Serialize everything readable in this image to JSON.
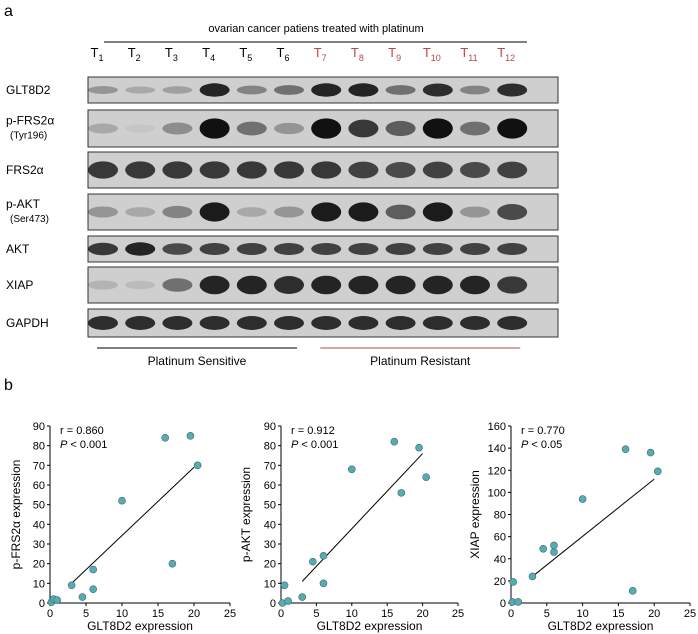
{
  "panel_a": {
    "label": "a",
    "title": "ovarian cancer patiens treated with platinum",
    "groups": [
      {
        "name": "Platinum Sensitive",
        "color": "#000000",
        "lanes": [
          [
            "T",
            "1"
          ],
          [
            "T",
            "2"
          ],
          [
            "T",
            "3"
          ],
          [
            "T",
            "4"
          ],
          [
            "T",
            "5"
          ],
          [
            "T",
            "6"
          ]
        ]
      },
      {
        "name": "Platinum Resistant",
        "color": "#b8474a",
        "lanes": [
          [
            "T",
            "7"
          ],
          [
            "T",
            "8"
          ],
          [
            "T",
            "9"
          ],
          [
            "T",
            "10"
          ],
          [
            "T",
            "11"
          ],
          [
            "T",
            "12"
          ]
        ]
      }
    ],
    "rows": [
      {
        "name": "GLT8D2"
      },
      {
        "name": "p-FRS2α",
        "site": "(Tyr196)"
      },
      {
        "name": "FRS2α"
      },
      {
        "name": "p-AKT",
        "site": "(Ser473)"
      },
      {
        "name": "AKT"
      },
      {
        "name": "XIAP"
      },
      {
        "name": "GAPDH"
      }
    ]
  },
  "panel_b": {
    "label": "b"
  },
  "chart_data": [
    {
      "type": "scatter",
      "x_label": "GLT8D2 expression",
      "y_label": "p-FRS2α expression",
      "r_text": "r = 0.860",
      "p_symbol": "P",
      "p_text": "< 0.001",
      "color": "#5aabb0",
      "x": [
        0.2,
        0.5,
        1,
        3,
        4.5,
        6,
        6,
        10,
        16,
        17,
        19.5,
        20.5
      ],
      "y": [
        0.5,
        2,
        1.5,
        9,
        3,
        7,
        17,
        52,
        84,
        20,
        85,
        70
      ],
      "trend": {
        "x": [
          3,
          20
        ],
        "y": [
          10,
          69
        ]
      },
      "xlim": [
        0,
        25
      ],
      "xticks": [
        0,
        5,
        10,
        15,
        20,
        25
      ],
      "ylim": [
        0,
        90
      ],
      "yticks": [
        0,
        10,
        20,
        30,
        40,
        50,
        60,
        70,
        80,
        90
      ]
    },
    {
      "type": "scatter",
      "x_label": "GLT8D2 expression",
      "y_label": "p-AKT expression",
      "r_text": "r = 0.912",
      "p_symbol": "P",
      "p_text": "< 0.001",
      "color": "#5aabb0",
      "x": [
        0.2,
        0.5,
        1,
        3,
        4.5,
        6,
        6,
        10,
        16,
        17,
        19.5,
        20.5
      ],
      "y": [
        0,
        9,
        1,
        3,
        21,
        10,
        24,
        68,
        82,
        56,
        79,
        64
      ],
      "trend": {
        "x": [
          3,
          20
        ],
        "y": [
          11,
          76
        ]
      },
      "xlim": [
        0,
        25
      ],
      "xticks": [
        0,
        5,
        10,
        15,
        20,
        25
      ],
      "ylim": [
        0,
        90
      ],
      "yticks": [
        0,
        10,
        20,
        30,
        40,
        50,
        60,
        70,
        80,
        90
      ]
    },
    {
      "type": "scatter",
      "x_label": "GLT8D2 expression",
      "y_label": "XIAP expression",
      "r_text": "r = 0.770",
      "p_symbol": "P",
      "p_text": "< 0.05",
      "color": "#5aabb0",
      "x": [
        0.2,
        0.3,
        1,
        3,
        4.5,
        6,
        6,
        10,
        16,
        17,
        19.5,
        20.5
      ],
      "y": [
        1,
        19,
        1,
        24,
        49,
        46,
        52,
        94,
        139,
        11,
        136,
        119
      ],
      "trend": {
        "x": [
          3,
          20
        ],
        "y": [
          24,
          112
        ]
      },
      "xlim": [
        0,
        25
      ],
      "xticks": [
        0,
        5,
        10,
        15,
        20,
        25
      ],
      "ylim": [
        0,
        160
      ],
      "yticks": [
        0,
        20,
        40,
        60,
        80,
        100,
        120,
        140,
        160
      ]
    }
  ]
}
